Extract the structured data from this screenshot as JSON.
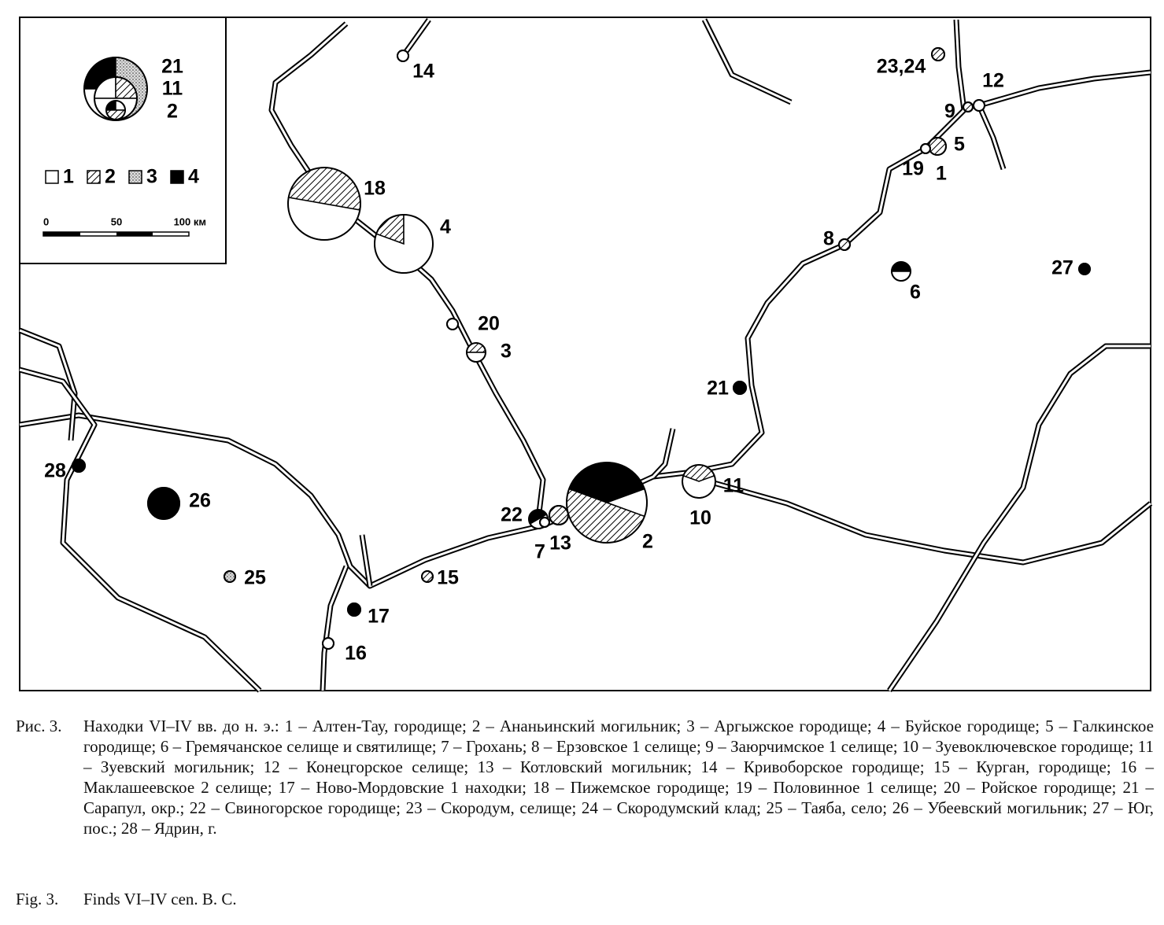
{
  "map": {
    "legend": {
      "sample_labels": [
        "21",
        "11",
        "2"
      ],
      "categories": [
        "1",
        "2",
        "3",
        "4"
      ],
      "scale": [
        "0",
        "50",
        "100 км"
      ]
    },
    "sites": [
      "14",
      "23,24",
      "12",
      "9",
      "5",
      "19",
      "1",
      "18",
      "4",
      "8",
      "6",
      "27",
      "20",
      "3",
      "21",
      "28",
      "26",
      "2",
      "11",
      "10",
      "22",
      "13",
      "7",
      "15",
      "25",
      "17",
      "16"
    ]
  },
  "caption": {
    "label": "Рис. 3.",
    "text": "Находки VI–IV вв. до н. э.: 1 – Алтен-Тау, городище; 2 – Ананьинский могильник; 3 – Аргыжское городище; 4 – Буйское городище; 5 – Галкинское городище; 6 – Гремячанское селище и святилище; 7 – Грохань; 8 – Ерзовское 1 селище; 9 – Заюрчимское 1 селище; 10 – Зуевоключевское городище; 11 – Зуевский могильник; 12 – Конецгорское селище; 13 – Котловский могильник; 14 – Кривоборское городище; 15 – Курган, городище; 16 – Маклашеевское 2 селище; 17 – Ново-Мордовские 1 находки; 18 – Пижемское городище; 19 – Половинное 1 селище; 20 – Ройское городище; 21 – Сарапул, окр.; 22 – Свиногорское городище; 23 – Скородум, селище; 24 – Скородумский клад; 25 – Таяба, село; 26 – Убеевский могильник; 27 – Юг, пос.; 28 – Ядрин, г.",
    "fig_label": "Fig. 3.",
    "fig_text": "Finds VI–IV cen. B. C."
  }
}
